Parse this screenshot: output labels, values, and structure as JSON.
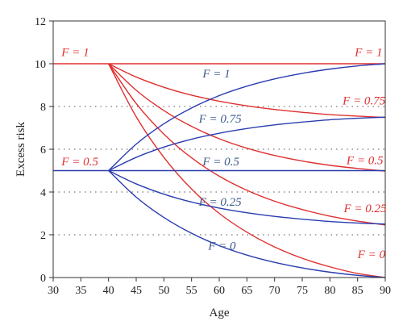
{
  "chart_data": {
    "type": "line",
    "title": "",
    "xlabel": "Age",
    "ylabel": "Excess risk",
    "xlim": [
      30,
      90
    ],
    "ylim": [
      0,
      12
    ],
    "xticks": [
      30,
      35,
      40,
      45,
      50,
      55,
      60,
      65,
      70,
      75,
      80,
      85,
      90
    ],
    "yticks": [
      0,
      2,
      4,
      6,
      8,
      10,
      12
    ],
    "grid": {
      "horizontal_dotted": [
        2,
        4,
        6,
        8
      ]
    },
    "colors": {
      "red": "#e03030",
      "blue": "#2a3db0",
      "blue_label": "#3a5a8c"
    },
    "series": [
      {
        "group": "red",
        "label": "F = 1",
        "x": [
          30,
          90
        ],
        "y": [
          10,
          10
        ]
      },
      {
        "group": "red",
        "label": "F = 0.75",
        "x": [
          40,
          45,
          50,
          55,
          60,
          65,
          70,
          75,
          80,
          85,
          90
        ],
        "y": [
          10,
          9.38,
          8.9,
          8.53,
          8.25,
          8.03,
          7.86,
          7.73,
          7.62,
          7.55,
          7.49
        ]
      },
      {
        "group": "red",
        "label": "F = 0.5",
        "x": [
          40,
          45,
          50,
          55,
          60,
          65,
          70,
          75,
          80,
          85,
          90
        ],
        "y": [
          10,
          8.76,
          7.81,
          7.07,
          6.49,
          6.05,
          5.71,
          5.45,
          5.25,
          5.1,
          4.98
        ]
      },
      {
        "group": "red",
        "label": "F = 0.25",
        "x": [
          40,
          45,
          50,
          55,
          60,
          65,
          70,
          75,
          80,
          85,
          90
        ],
        "y": [
          10,
          8.14,
          6.71,
          5.6,
          4.74,
          4.08,
          3.57,
          3.18,
          2.87,
          2.64,
          2.46
        ]
      },
      {
        "group": "red",
        "label": "F = 0",
        "x": [
          40,
          45,
          50,
          55,
          60,
          65,
          70,
          75,
          80,
          85,
          90
        ],
        "y": [
          10,
          7.52,
          5.62,
          4.14,
          3,
          2.12,
          1.43,
          0.9,
          0.5,
          0.19,
          0
        ]
      },
      {
        "group": "blue",
        "label": "F = 1",
        "x": [
          40,
          45,
          50,
          55,
          60,
          65,
          70,
          75,
          80,
          85,
          90
        ],
        "y": [
          5,
          6.24,
          7.19,
          7.93,
          8.51,
          8.95,
          9.29,
          9.55,
          9.75,
          9.9,
          10
        ]
      },
      {
        "group": "blue",
        "label": "F = 0.75",
        "x": [
          40,
          45,
          50,
          55,
          60,
          65,
          70,
          75,
          80,
          85,
          90
        ],
        "y": [
          5,
          5.62,
          6.1,
          6.47,
          6.75,
          6.97,
          7.14,
          7.27,
          7.38,
          7.45,
          7.5
        ]
      },
      {
        "group": "blue",
        "label": "F = 0.5",
        "x": [
          30,
          90
        ],
        "y": [
          5,
          5
        ]
      },
      {
        "group": "blue",
        "label": "F = 0.25",
        "x": [
          40,
          45,
          50,
          55,
          60,
          65,
          70,
          75,
          80,
          85,
          90
        ],
        "y": [
          5,
          4.38,
          3.9,
          3.53,
          3.25,
          3.03,
          2.86,
          2.73,
          2.62,
          2.55,
          2.5
        ]
      },
      {
        "group": "blue",
        "label": "F = 0",
        "x": [
          40,
          45,
          50,
          55,
          60,
          65,
          70,
          75,
          80,
          85,
          90
        ],
        "y": [
          5,
          3.76,
          2.81,
          2.07,
          1.49,
          1.05,
          0.71,
          0.45,
          0.25,
          0.1,
          0
        ]
      }
    ],
    "annotations": [
      {
        "text": "F = 1",
        "color": "red",
        "x": 31.5,
        "y": 10.35
      },
      {
        "text": "F = 1",
        "color": "red",
        "x": 84.5,
        "y": 10.35
      },
      {
        "text": "F = 0.75",
        "color": "red",
        "x": 82.3,
        "y": 8.1
      },
      {
        "text": "F = 0.5",
        "color": "red",
        "x": 83.0,
        "y": 5.3
      },
      {
        "text": "F = 0.25",
        "color": "red",
        "x": 82.5,
        "y": 3.05
      },
      {
        "text": "F = 0",
        "color": "red",
        "x": 85.0,
        "y": 0.9
      },
      {
        "text": "F = 0.5",
        "color": "red",
        "x": 31.5,
        "y": 5.25
      },
      {
        "text": "F = 1",
        "color": "blue",
        "x": 57.0,
        "y": 9.35
      },
      {
        "text": "F = 0.75",
        "color": "blue",
        "x": 56.3,
        "y": 7.25
      },
      {
        "text": "F = 0.5",
        "color": "blue",
        "x": 57.0,
        "y": 5.25
      },
      {
        "text": "F = 0.25",
        "color": "blue",
        "x": 56.3,
        "y": 3.35
      },
      {
        "text": "F = 0",
        "color": "blue",
        "x": 58.0,
        "y": 1.3
      }
    ]
  }
}
